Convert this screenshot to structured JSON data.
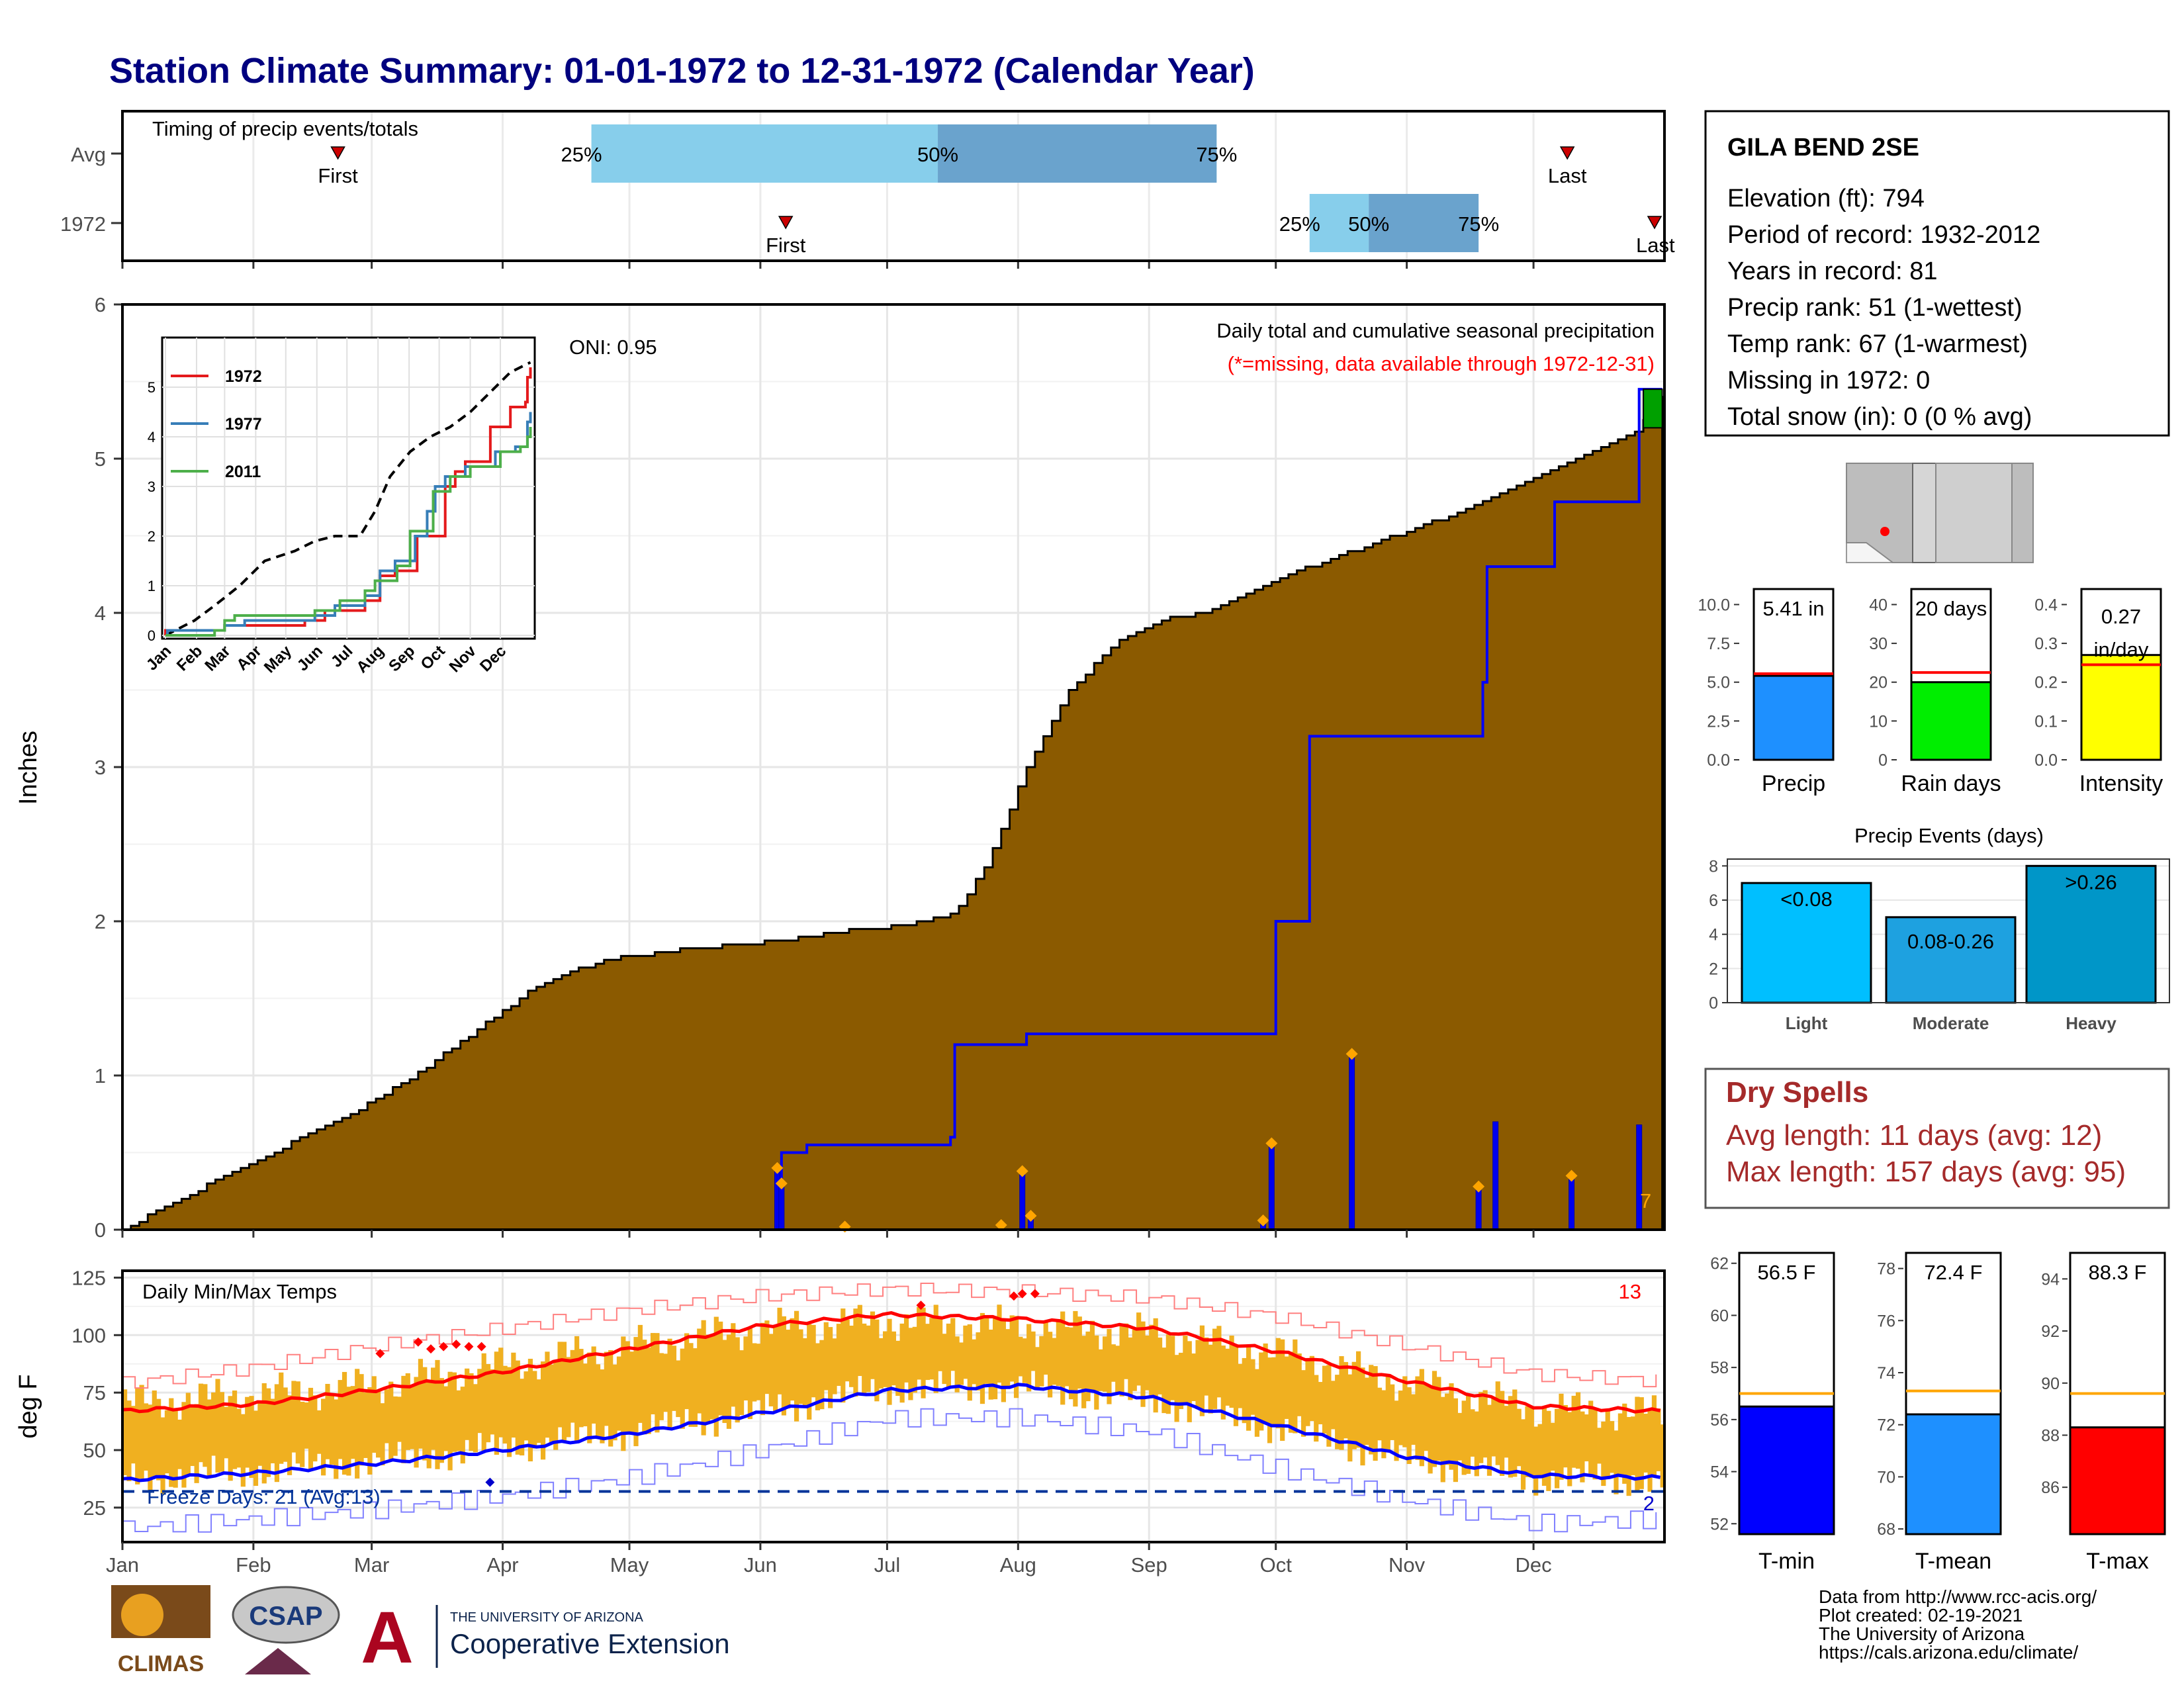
{
  "title": "Station Climate Summary: 01-01-1972 to 12-31-1972 (Calendar Year)",
  "colors": {
    "title": "#00007f",
    "cumulative_fill": "#8b5a00",
    "avg_fill": "#e0e0e0",
    "avg_line": "#0000ff",
    "daily_bar": "#0000ee",
    "daily_marker": "#ffa500",
    "temp_bar": "#f0b020",
    "avg_max": "#ff0000",
    "avg_min": "#0000ff",
    "record_max": "#ff8080",
    "record_min": "#8080ff",
    "freeze_line": "#003399",
    "q_light": "#87ceeb",
    "q_dark": "#6aa3cd",
    "dry_spells": "#a52a2a"
  },
  "months": [
    "Jan",
    "Feb",
    "Mar",
    "Apr",
    "May",
    "Jun",
    "Jul",
    "Aug",
    "Sep",
    "Oct",
    "Nov",
    "Dec"
  ],
  "timing": {
    "title": "Timing of precip events/totals",
    "rows": [
      {
        "label": "Avg",
        "first": 52,
        "q25": 112,
        "q50": 194,
        "q75": 260,
        "last": 343
      },
      {
        "label": "1972",
        "first": 158,
        "q25": 282,
        "q50": 296,
        "q75": 322,
        "last": 365
      }
    ],
    "first_label": "First",
    "last_label": "Last",
    "q25_label": "25%",
    "q50_label": "50%",
    "q75_label": "75%"
  },
  "precip_panel": {
    "ylabel": "Inches",
    "yticks": [
      0,
      1,
      2,
      3,
      4,
      5,
      6
    ],
    "ylim": [
      0,
      6
    ],
    "oni": "ONI: 0.95",
    "caption": "Daily total and cumulative seasonal precipitation",
    "missing_note": "(*=missing, data available through 1972-12-31)",
    "missing_count": "7"
  },
  "inset": {
    "yticks": [
      "0",
      "1",
      "2",
      "3",
      "4",
      "5"
    ],
    "months": [
      "Jan",
      "Feb",
      "Mar",
      "Apr",
      "May",
      "Jun",
      "Jul",
      "Aug",
      "Sep",
      "Oct",
      "Nov",
      "Dec"
    ],
    "legend": [
      {
        "name": "1972",
        "color": "#e41a1c"
      },
      {
        "name": "1977",
        "color": "#377eb8"
      },
      {
        "name": "2011",
        "color": "#4daf4a"
      }
    ]
  },
  "temp_panel": {
    "ylabel": "deg F",
    "yticks": [
      "25",
      "50",
      "75",
      "100",
      "125"
    ],
    "title": "Daily Min/Max Temps",
    "record_high_count": "13",
    "freeze_label": "Freeze Days: 21 (Avg:13)",
    "record_low_count": "2"
  },
  "station": {
    "name": "GILA BEND 2SE",
    "lines": [
      "Elevation (ft): 794",
      "Period of record: 1932-2012",
      "Years in record: 81",
      "Precip rank: 51 (1-wettest)",
      "Temp rank: 67 (1-warmest)",
      "Missing in 1972: 0",
      "Total snow (in): 0 (0 % avg)"
    ]
  },
  "mini_bars": [
    {
      "label": "Precip",
      "value_text": "5.41 in",
      "value": 5.41,
      "avg": 5.55,
      "ylim": [
        0,
        11
      ],
      "yticks": [
        "0.0",
        "2.5",
        "5.0",
        "7.5",
        "10.0"
      ],
      "color": "#1e90ff"
    },
    {
      "label": "Rain days",
      "value_text": "20 days",
      "value": 20,
      "avg": 22.5,
      "ylim": [
        0,
        44
      ],
      "yticks": [
        "0",
        "10",
        "20",
        "30",
        "40"
      ],
      "color": "#00ee00"
    },
    {
      "label": "Intensity",
      "value_text": "0.27 in/day",
      "value": 0.27,
      "avg": 0.245,
      "ylim": [
        0,
        0.44
      ],
      "yticks": [
        "0.0",
        "0.1",
        "0.2",
        "0.3",
        "0.4"
      ],
      "color": "#ffff00"
    }
  ],
  "precip_events": {
    "title": "Precip Events (days)",
    "yticks": [
      "0",
      "2",
      "4",
      "6",
      "8"
    ],
    "ylim": [
      0,
      8.4
    ],
    "bars": [
      {
        "category": "Light",
        "label": "<0.08",
        "value": 7,
        "color": "#00bfff"
      },
      {
        "category": "Moderate",
        "label": "0.08-0.26",
        "value": 5,
        "color": "#1ea1e0"
      },
      {
        "category": "Heavy",
        "label": ">0.26",
        "value": 8,
        "color": "#0096c8"
      }
    ]
  },
  "dry_spells": {
    "title": "Dry Spells",
    "avg_length": "Avg length: 11 days (avg: 12)",
    "max_length": "Max length: 157 days (avg: 95)"
  },
  "temp_bars": [
    {
      "label": "T-min",
      "value_text": "56.5 F",
      "value": 56.5,
      "avg": 57.0,
      "ylim": [
        51.6,
        62.4
      ],
      "yticks": [
        "52",
        "54",
        "56",
        "58",
        "60",
        "62"
      ],
      "color": "#0000ff"
    },
    {
      "label": "T-mean",
      "value_text": "72.4 F",
      "value": 72.4,
      "avg": 73.3,
      "ylim": [
        67.8,
        78.6
      ],
      "yticks": [
        "68",
        "70",
        "72",
        "74",
        "76",
        "78"
      ],
      "color": "#1e90ff"
    },
    {
      "label": "T-max",
      "value_text": "88.3 F",
      "value": 88.3,
      "avg": 89.6,
      "ylim": [
        84.2,
        95.0
      ],
      "yticks": [
        "86",
        "88",
        "90",
        "92",
        "94"
      ],
      "color": "#ff0000"
    }
  ],
  "footer": {
    "lines": [
      "Data from http://www.rcc-acis.org/",
      "Plot created: 02-19-2021",
      "The University of Arizona",
      "https://cals.arizona.edu/climate/"
    ]
  },
  "logos": {
    "climas": "CLIMAS",
    "csap": "CSAP",
    "ua_top": "THE UNIVERSITY OF ARIZONA",
    "ua_bottom": "Cooperative Extension",
    "ua_letter": "A"
  },
  "chart_data": [
    {
      "type": "bar",
      "title": "Timing of precip events/totals",
      "categories": [
        "Avg",
        "1972"
      ],
      "series": [
        {
          "name": "First",
          "values": [
            52,
            158
          ]
        },
        {
          "name": "25%",
          "values": [
            112,
            282
          ]
        },
        {
          "name": "50%",
          "values": [
            194,
            296
          ]
        },
        {
          "name": "75%",
          "values": [
            260,
            322
          ]
        },
        {
          "name": "Last",
          "values": [
            343,
            365
          ]
        }
      ]
    },
    {
      "type": "area",
      "title": "Daily total and cumulative seasonal precipitation",
      "ylabel": "Inches",
      "ylim": [
        0,
        6
      ],
      "x_unit": "day of year",
      "series": [
        {
          "name": "1972",
          "x": [
            1,
            25,
            55,
            70,
            85,
            100,
            115,
            135,
            155,
            175,
            185,
            198,
            206,
            215,
            225,
            236,
            246,
            258,
            268,
            282,
            297,
            312,
            330,
            345,
            358,
            365
          ],
          "values": [
            0,
            0.35,
            0.75,
            1.0,
            1.3,
            1.6,
            1.75,
            1.82,
            1.87,
            1.95,
            1.97,
            2.05,
            2.4,
            3.0,
            3.5,
            3.8,
            3.95,
            4.0,
            4.15,
            4.3,
            4.45,
            4.6,
            4.8,
            5.0,
            5.15,
            5.41
          ]
        },
        {
          "x": [
            0,
            156,
            157,
            163,
            197,
            198,
            215,
            272,
            274,
            282,
            323,
            324,
            339,
            340,
            359,
            360,
            365
          ],
          "values": [
            0,
            0,
            0.5,
            0.55,
            0.6,
            1.2,
            1.27,
            1.27,
            2.0,
            3.2,
            3.55,
            4.3,
            4.3,
            4.72,
            4.72,
            5.45,
            5.45
          ]
        }
      ],
      "daily_precip": {
        "day": [
          156,
          157,
          172,
          209,
          214,
          216,
          271,
          273,
          292,
          322,
          326,
          344,
          360
        ],
        "inches": [
          0.4,
          0.3,
          0.02,
          0.03,
          0.38,
          0.09,
          0.06,
          0.56,
          1.14,
          0.28,
          0.7,
          0.35,
          0.68
        ]
      }
    },
    {
      "type": "line",
      "title": "Daily Min/Max Temps",
      "ylabel": "deg F",
      "ylim": [
        10,
        128
      ],
      "x_unit": "day of year",
      "x": [
        1,
        32,
        60,
        91,
        121,
        152,
        182,
        213,
        244,
        274,
        305,
        335,
        365
      ],
      "series": [
        {
          "values": [
            67,
            70,
            76,
            84,
            94,
            104,
            109,
            107,
            103,
            93,
            80,
            69,
            67
          ]
        },
        {
          "values": [
            37,
            40,
            44,
            50,
            57,
            66,
            76,
            78,
            73,
            61,
            47,
            39,
            38
          ]
        },
        {
          "values": [
            79,
            86,
            95,
            103,
            111,
            117,
            120,
            119,
            116,
            108,
            95,
            83,
            80
          ]
        },
        {
          "values": [
            16,
            20,
            24,
            30,
            38,
            50,
            64,
            64,
            58,
            42,
            28,
            18,
            20
          ]
        },
        {
          "values": [
            70,
            74,
            78,
            87,
            95,
            103,
            106,
            104,
            101,
            92,
            79,
            68,
            66
          ]
        },
        {
          "values": [
            37,
            41,
            45,
            51,
            58,
            67,
            77,
            77,
            72,
            60,
            46,
            38,
            37
          ]
        }
      ],
      "freeze_threshold": 32
    }
  ]
}
